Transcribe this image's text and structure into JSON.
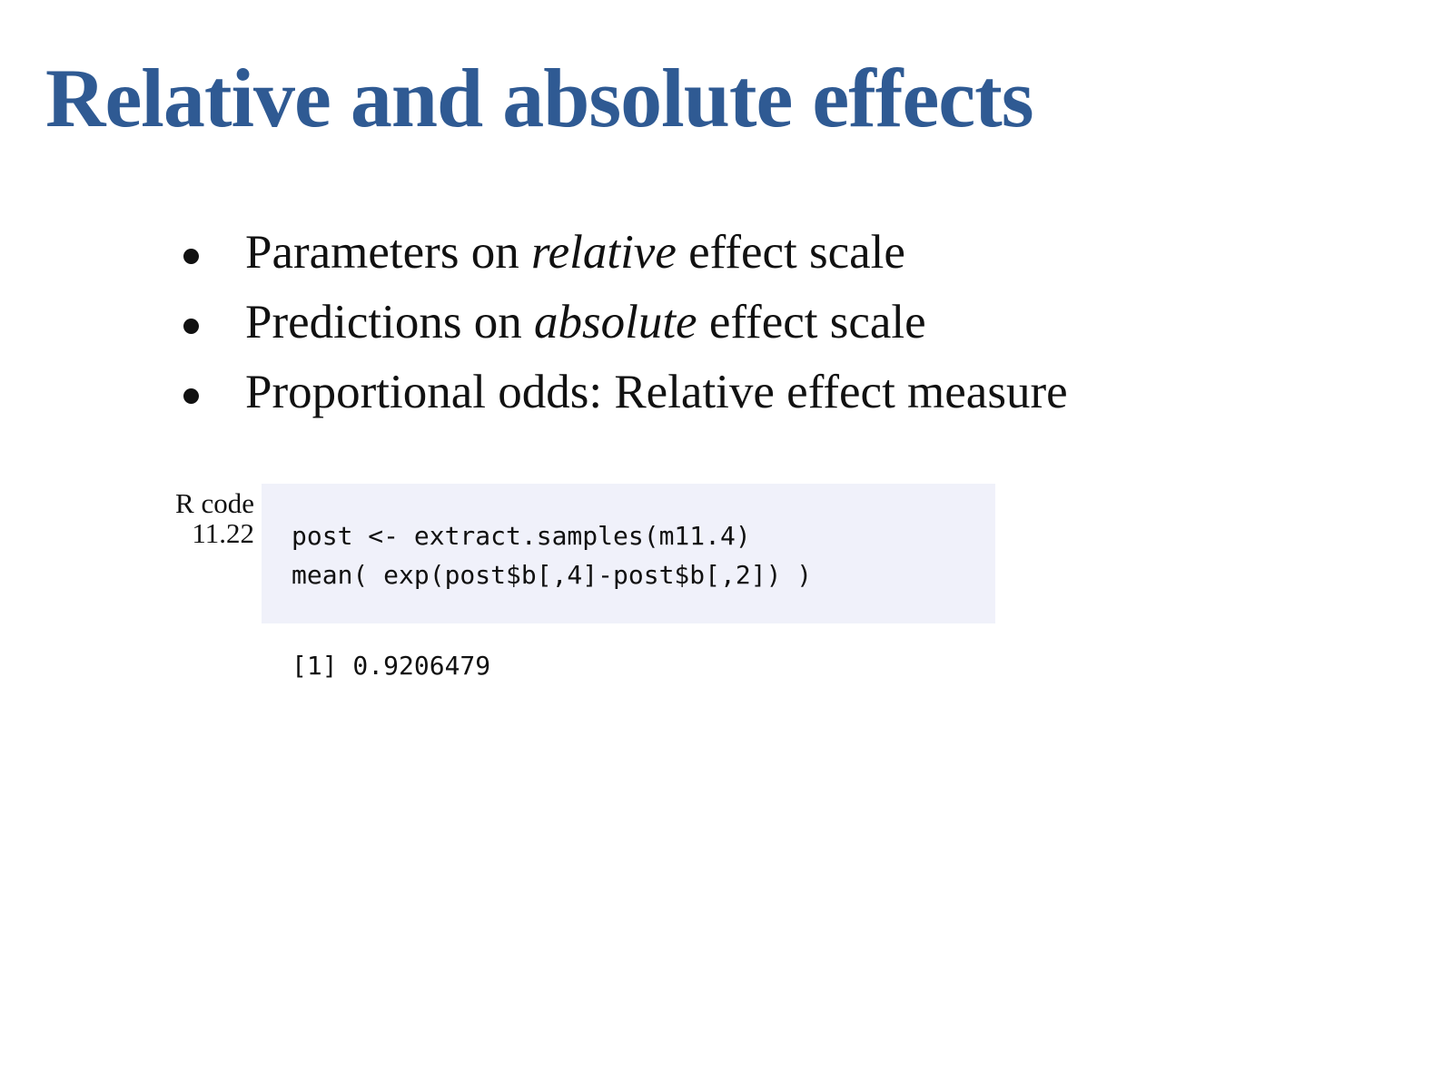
{
  "slide": {
    "title": "Relative and absolute effects"
  },
  "bullets": [
    {
      "before": "Parameters on ",
      "emphasis": "relative",
      "after": " effect scale"
    },
    {
      "before": "Predictions on ",
      "emphasis": "absolute",
      "after": " effect scale"
    },
    {
      "before": "Proportional odds: Relative effect measure",
      "emphasis": "",
      "after": ""
    }
  ],
  "code_block": {
    "label_line1": "R code",
    "label_line2": "11.22",
    "lines": [
      "post <- extract.samples(m11.4)",
      "mean( exp(post$b[,4]-post$b[,2]) )"
    ],
    "output": "[1] 0.9206479",
    "background_color": "#f0f1fa"
  },
  "colors": {
    "title": "#2f5a93",
    "text": "#111111"
  }
}
